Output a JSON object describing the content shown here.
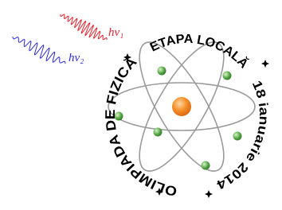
{
  "photon_labels": [
    "hν₁",
    "hν₂"
  ],
  "ring_text": {
    "top": "ETAPA LOCALĂ",
    "right": "18 ianuarie 2014",
    "left": "OLIMPIADA DE FIZICĂ"
  }
}
